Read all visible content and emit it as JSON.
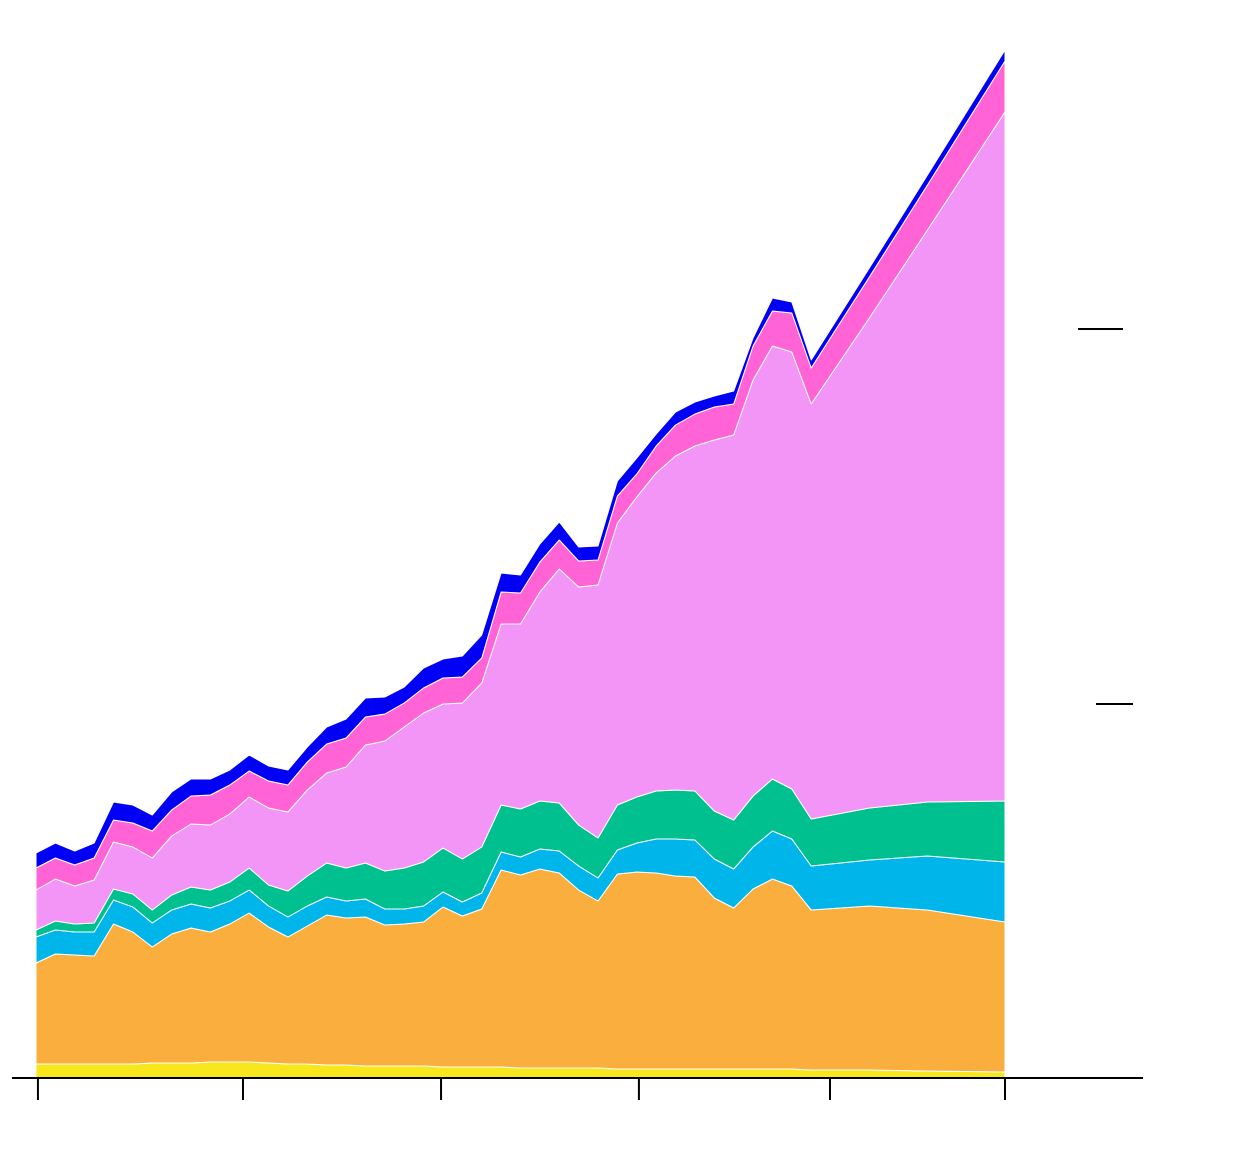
{
  "chart_data": {
    "type": "area",
    "stacked": true,
    "grid": false,
    "x": [
      0,
      1,
      2,
      3,
      4,
      5,
      6,
      7,
      8,
      9,
      10,
      11,
      12,
      13,
      14,
      15,
      16,
      17,
      18,
      19,
      20,
      21,
      22,
      23,
      24,
      25,
      26,
      27,
      28,
      29,
      30,
      31,
      32,
      33,
      34,
      35,
      36,
      37,
      38,
      39,
      40,
      43,
      46,
      50
    ],
    "xlim": [
      0,
      50
    ],
    "xticks": [
      0.1,
      10.68,
      20.9,
      31.11,
      40.97,
      50
    ],
    "ylim": [
      0,
      1030
    ],
    "series": [
      {
        "color": "#f8e71c",
        "values": [
          14,
          14,
          14,
          14,
          14,
          14,
          15,
          15,
          15,
          16,
          16,
          16,
          15,
          14,
          14,
          13,
          13,
          12,
          12,
          12,
          12,
          11,
          11,
          11,
          11,
          10,
          10,
          10,
          10,
          10,
          9,
          9,
          9,
          9,
          9,
          9,
          9,
          9,
          9,
          9,
          8,
          8,
          7,
          6
        ]
      },
      {
        "color": "#f9ae3d",
        "values": [
          101,
          110,
          109,
          108,
          140,
          132,
          116,
          129,
          135,
          130,
          138,
          149,
          136,
          127,
          138,
          150,
          147,
          149,
          141,
          142,
          144,
          160,
          151,
          158,
          197,
          193,
          199,
          195,
          178,
          167,
          195,
          197,
          196,
          193,
          192,
          171,
          161,
          180,
          190,
          183,
          160,
          164,
          161,
          150
        ]
      },
      {
        "color": "#00b5e9",
        "values": [
          26,
          24,
          23,
          24,
          24,
          25,
          24,
          24,
          24,
          24,
          23,
          23,
          21,
          20,
          20,
          18,
          17,
          18,
          16,
          15,
          16,
          15,
          14,
          16,
          18,
          18,
          20,
          22,
          24,
          23,
          24,
          29,
          34,
          37,
          37,
          39,
          39,
          42,
          48,
          47,
          44,
          46,
          54,
          60
        ]
      },
      {
        "color": "#00c08f",
        "values": [
          7,
          9,
          8,
          9,
          11,
          13,
          13,
          15,
          17,
          18,
          19,
          22,
          21,
          26,
          30,
          34,
          33,
          36,
          38,
          41,
          44,
          44,
          43,
          46,
          47,
          48,
          48,
          48,
          41,
          40,
          45,
          46,
          48,
          49,
          49,
          48,
          49,
          51,
          52,
          50,
          47,
          52,
          54,
          61
        ]
      },
      {
        "color": "#f395f7",
        "values": [
          40,
          42,
          38,
          43,
          47,
          47,
          52,
          59,
          63,
          65,
          68,
          71,
          77,
          79,
          86,
          90,
          101,
          118,
          130,
          141,
          149,
          144,
          156,
          164,
          181,
          185,
          209,
          234,
          238,
          253,
          282,
          300,
          318,
          334,
          345,
          371,
          385,
          416,
          433,
          437,
          415,
          490,
          572,
          689
        ]
      },
      {
        "color": "#ff63d6",
        "values": [
          22,
          21,
          21,
          22,
          22,
          24,
          27,
          26,
          28,
          30,
          29,
          26,
          27,
          27,
          28,
          29,
          29,
          28,
          27,
          24,
          25,
          26,
          26,
          25,
          32,
          31,
          30,
          29,
          26,
          25,
          27,
          23,
          27,
          31,
          32,
          33,
          31,
          34,
          35,
          39,
          36,
          41,
          45,
          51
        ]
      },
      {
        "color": "#0000f5",
        "values": [
          15,
          15,
          14,
          15,
          18,
          18,
          16,
          18,
          17,
          16,
          15,
          16,
          15,
          15,
          15,
          17,
          19,
          19,
          17,
          16,
          20,
          19,
          21,
          23,
          19,
          18,
          18,
          18,
          14,
          14,
          15,
          16,
          12,
          13,
          12,
          11,
          13,
          8,
          13,
          11,
          8,
          9,
          10,
          11
        ]
      }
    ]
  }
}
